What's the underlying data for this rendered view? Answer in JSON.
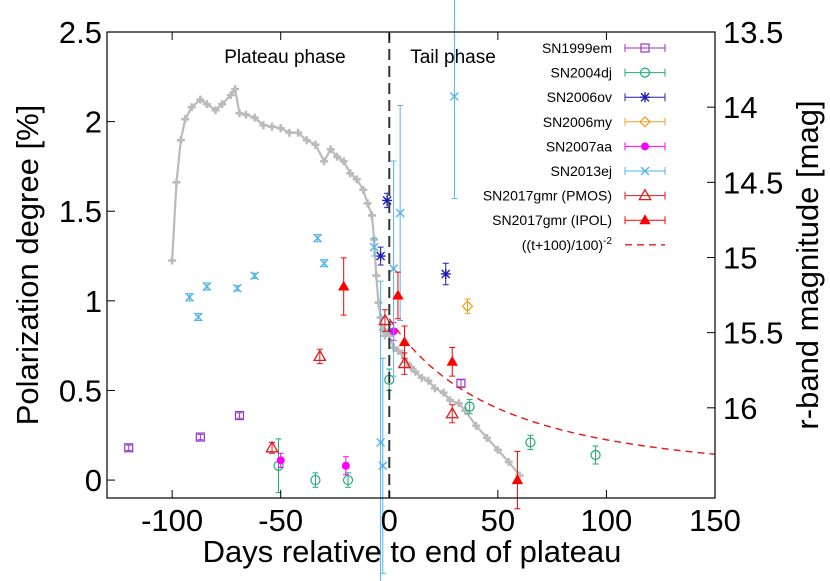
{
  "chart_data": {
    "type": "scatter",
    "xlabel": "Days relative to end of plateau",
    "ylabel": "Polarization degree [%]",
    "y2label": "r-band magnitude [mag]",
    "xlim": [
      -130,
      150
    ],
    "ylim": [
      -0.1,
      2.5
    ],
    "y2lim": [
      16.6,
      13.5
    ],
    "y2_inverted": true,
    "xticks": [
      -100,
      -50,
      0,
      50,
      100,
      150
    ],
    "xtick_labels": [
      "-100",
      "-50",
      "0",
      "50",
      "100",
      "150"
    ],
    "yticks": [
      0,
      0.5,
      1,
      1.5,
      2,
      2.5
    ],
    "ytick_labels": [
      "0",
      "0.5",
      "1",
      "1.5",
      "2",
      "2.5"
    ],
    "y2ticks": [
      13.5,
      14,
      14.5,
      15,
      15.5,
      16
    ],
    "y2tick_labels": [
      "13.5",
      "14",
      "14.5",
      "15",
      "15.5",
      "16"
    ],
    "grid": false,
    "legend_position": "top-right",
    "annotations": {
      "plateau": "Plateau phase",
      "tail": "Tail phase"
    },
    "vline_x": 0,
    "legend_suffix": "-2",
    "series": [
      {
        "name": "SN1999em",
        "color": "#9933cc",
        "marker": "square-open",
        "x": [
          -120,
          -87,
          -69,
          33
        ],
        "y": [
          0.18,
          0.24,
          0.36,
          0.54
        ],
        "err": [
          0.015,
          0.015,
          0.015,
          0.02
        ]
      },
      {
        "name": "SN2004dj",
        "color": "#22aa77",
        "marker": "circle-open",
        "x": [
          -51,
          -34,
          -19,
          0,
          37,
          65,
          95
        ],
        "y": [
          0.08,
          0.0,
          0.0,
          0.56,
          0.41,
          0.21,
          0.14
        ],
        "err": [
          0.15,
          0.04,
          0.04,
          0.06,
          0.04,
          0.04,
          0.05
        ]
      },
      {
        "name": "SN2006ov",
        "color": "#1f1fb4",
        "marker": "star",
        "x": [
          -4,
          -1,
          26
        ],
        "y": [
          1.25,
          1.56,
          1.15
        ],
        "err": [
          0.05,
          0.04,
          0.06
        ]
      },
      {
        "name": "SN2006my",
        "color": "#f0a020",
        "marker": "diamond-open",
        "x": [
          36
        ],
        "y": [
          0.97
        ],
        "err": [
          0.04
        ]
      },
      {
        "name": "SN2007aa",
        "color": "#ff00ff",
        "marker": "circle-filled",
        "x": [
          -50,
          -20,
          2
        ],
        "y": [
          0.11,
          0.08,
          0.83
        ],
        "err": [
          0.04,
          0.05,
          0.05
        ]
      },
      {
        "name": "SN2013ej",
        "color": "#55b4e9",
        "marker": "cross",
        "x": [
          -92,
          -88,
          -84,
          -70,
          -62,
          -33,
          -30,
          -7,
          -4,
          -3,
          2,
          5,
          30
        ],
        "y": [
          1.02,
          0.91,
          1.08,
          1.07,
          1.14,
          1.35,
          1.21,
          1.3,
          0.21,
          0.08,
          1.18,
          1.49,
          2.14
        ],
        "err": [
          0.02,
          0.02,
          0.02,
          0.015,
          0.015,
          0.02,
          0.02,
          0.05,
          0.9,
          0.6,
          0.6,
          0.6,
          0.57
        ]
      },
      {
        "name": "SN2017gmr (PMOS)",
        "color": "#e31a1c",
        "marker": "triangle-open",
        "x": [
          -54,
          -32,
          -2,
          7,
          29
        ],
        "y": [
          0.18,
          0.69,
          0.89,
          0.65,
          0.37
        ],
        "err": [
          0.03,
          0.04,
          0.06,
          0.06,
          0.05
        ]
      },
      {
        "name": "SN2017gmr (IPOL)",
        "color": "#ff0000",
        "marker": "triangle-filled",
        "x": [
          -21,
          4,
          7,
          29,
          59
        ],
        "y": [
          1.08,
          1.03,
          0.77,
          0.66,
          0.0
        ],
        "err": [
          0.16,
          0.13,
          0.09,
          0.08,
          0.16
        ]
      },
      {
        "name": "((t+100)/100)",
        "color": "#e31a1c",
        "marker": "dashed-line",
        "x": [
          0,
          25,
          50,
          75,
          100,
          125,
          150
        ],
        "y": [
          0.9,
          0.576,
          0.4,
          0.294,
          0.225,
          0.178,
          0.144
        ]
      }
    ],
    "lightcurve": {
      "name": "r-band light curve",
      "color": "#bbbbbb",
      "x": [
        -100,
        -98,
        -96,
        -94,
        -91,
        -87,
        -84,
        -80,
        -77,
        -73,
        -71,
        -69,
        -66,
        -62,
        -58,
        -54,
        -50,
        -46,
        -42,
        -38,
        -34,
        -30,
        -27,
        -24,
        -21,
        -18,
        -15,
        -12,
        -10,
        -8,
        -7,
        -6,
        -5,
        -4,
        -3,
        -2,
        -1,
        0,
        2,
        4,
        6,
        8,
        10,
        12,
        15,
        18,
        21,
        25,
        28,
        32,
        35,
        40,
        45,
        50,
        55,
        60
      ],
      "mag": [
        15.02,
        14.5,
        14.22,
        14.08,
        14.0,
        13.95,
        13.98,
        14.02,
        13.98,
        13.92,
        13.88,
        14.04,
        14.05,
        14.07,
        14.12,
        14.13,
        14.14,
        14.17,
        14.17,
        14.22,
        14.25,
        14.36,
        14.28,
        14.33,
        14.36,
        14.44,
        14.48,
        14.55,
        14.64,
        14.72,
        14.88,
        15.12,
        15.3,
        15.4,
        15.48,
        15.52,
        15.5,
        15.52,
        15.6,
        15.62,
        15.64,
        15.7,
        15.73,
        15.76,
        15.8,
        15.82,
        15.87,
        15.9,
        15.95,
        15.97,
        16.02,
        16.12,
        16.2,
        16.28,
        16.36,
        16.45
      ]
    }
  }
}
